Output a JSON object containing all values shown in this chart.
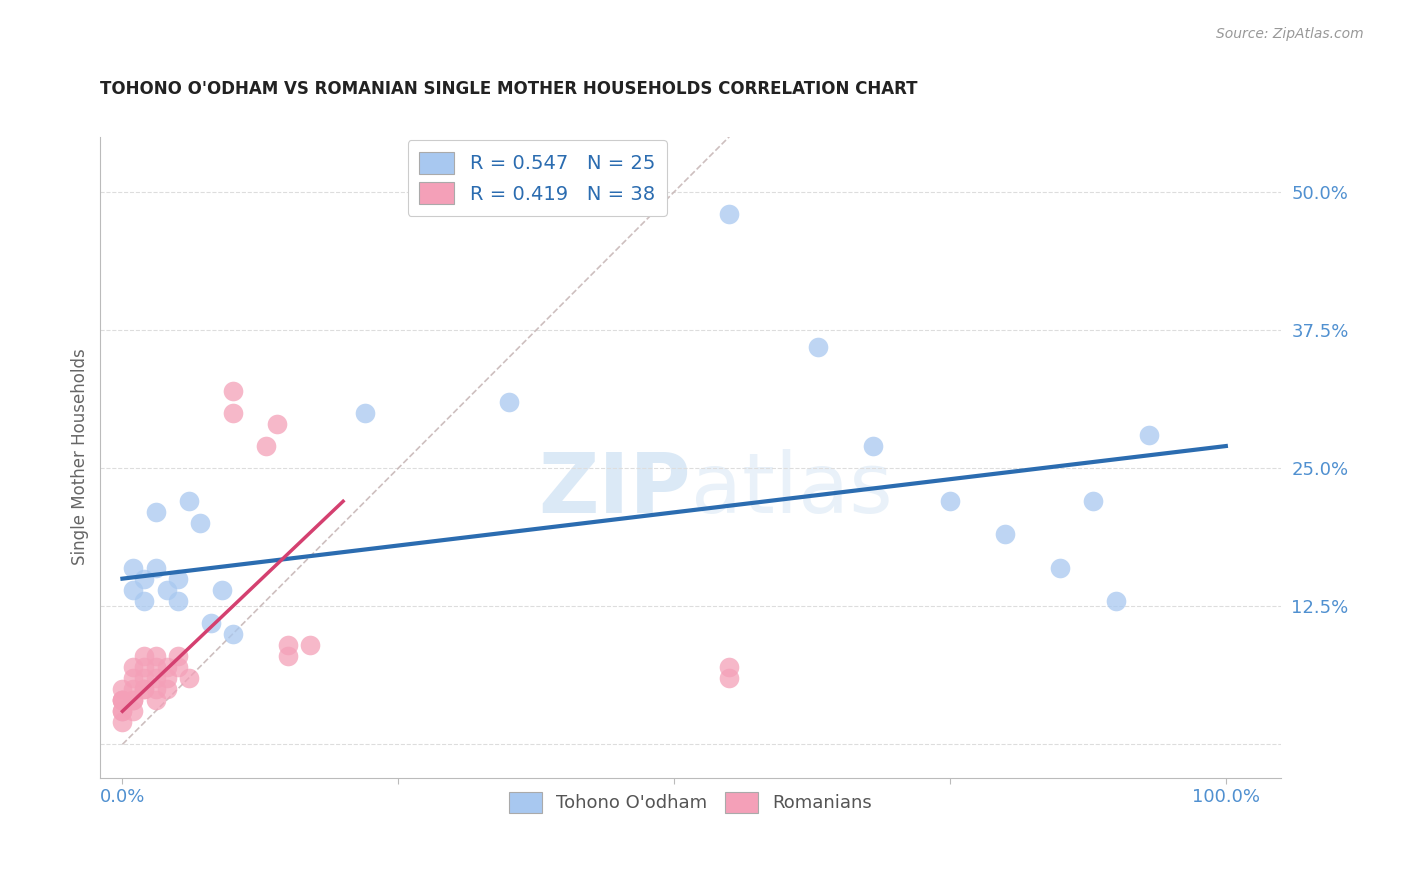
{
  "title": "TOHONO O'ODHAM VS ROMANIAN SINGLE MOTHER HOUSEHOLDS CORRELATION CHART",
  "source": "Source: ZipAtlas.com",
  "ylabel": "Single Mother Households",
  "xlim": [
    -2,
    105
  ],
  "ylim": [
    -3,
    55
  ],
  "xlabel_vals": [
    0,
    25,
    50,
    75,
    100
  ],
  "xlabel_ticks": [
    "0.0%",
    "",
    "",
    "",
    "100.0%"
  ],
  "ylabel_vals": [
    0,
    12.5,
    25,
    37.5,
    50
  ],
  "ylabel_ticks": [
    "",
    "12.5%",
    "25.0%",
    "37.5%",
    "50.0%"
  ],
  "blue_scatter": [
    [
      1,
      16
    ],
    [
      1,
      14
    ],
    [
      2,
      15
    ],
    [
      2,
      13
    ],
    [
      3,
      16
    ],
    [
      3,
      21
    ],
    [
      4,
      14
    ],
    [
      5,
      15
    ],
    [
      5,
      13
    ],
    [
      6,
      22
    ],
    [
      7,
      20
    ],
    [
      8,
      11
    ],
    [
      9,
      14
    ],
    [
      10,
      10
    ],
    [
      22,
      30
    ],
    [
      35,
      31
    ],
    [
      55,
      48
    ],
    [
      63,
      36
    ],
    [
      68,
      27
    ],
    [
      75,
      22
    ],
    [
      80,
      19
    ],
    [
      85,
      16
    ],
    [
      88,
      22
    ],
    [
      90,
      13
    ],
    [
      93,
      28
    ]
  ],
  "pink_scatter": [
    [
      0,
      2
    ],
    [
      0,
      3
    ],
    [
      0,
      4
    ],
    [
      0,
      4
    ],
    [
      0,
      5
    ],
    [
      0,
      3
    ],
    [
      0,
      4
    ],
    [
      1,
      3
    ],
    [
      1,
      5
    ],
    [
      1,
      4
    ],
    [
      1,
      6
    ],
    [
      1,
      7
    ],
    [
      1,
      4
    ],
    [
      2,
      5
    ],
    [
      2,
      6
    ],
    [
      2,
      8
    ],
    [
      2,
      7
    ],
    [
      2,
      5
    ],
    [
      3,
      6
    ],
    [
      3,
      7
    ],
    [
      3,
      5
    ],
    [
      3,
      4
    ],
    [
      3,
      8
    ],
    [
      4,
      6
    ],
    [
      4,
      7
    ],
    [
      4,
      5
    ],
    [
      5,
      7
    ],
    [
      5,
      8
    ],
    [
      6,
      6
    ],
    [
      10,
      32
    ],
    [
      10,
      30
    ],
    [
      13,
      27
    ],
    [
      14,
      29
    ],
    [
      15,
      9
    ],
    [
      15,
      8
    ],
    [
      17,
      9
    ],
    [
      55,
      7
    ],
    [
      55,
      6
    ]
  ],
  "blue_line": {
    "x": [
      0,
      100
    ],
    "y": [
      15,
      27
    ]
  },
  "pink_line": {
    "x": [
      0,
      20
    ],
    "y": [
      3,
      22
    ]
  },
  "diagonal_line": {
    "x": [
      0,
      55
    ],
    "y": [
      0,
      55
    ]
  },
  "blue_color": "#A8C8F0",
  "pink_color": "#F4A0B8",
  "blue_line_color": "#2B6CB0",
  "pink_line_color": "#D44070",
  "diagonal_color": "#C8B8B8",
  "R_blue": "0.547",
  "N_blue": "25",
  "R_pink": "0.419",
  "N_pink": "38",
  "legend_label_blue": "Tohono O'odham",
  "legend_label_pink": "Romanians",
  "watermark_zip": "ZIP",
  "watermark_atlas": "atlas",
  "background_color": "#ffffff",
  "axis_color": "#5090D0",
  "spine_color": "#BBBBBB"
}
